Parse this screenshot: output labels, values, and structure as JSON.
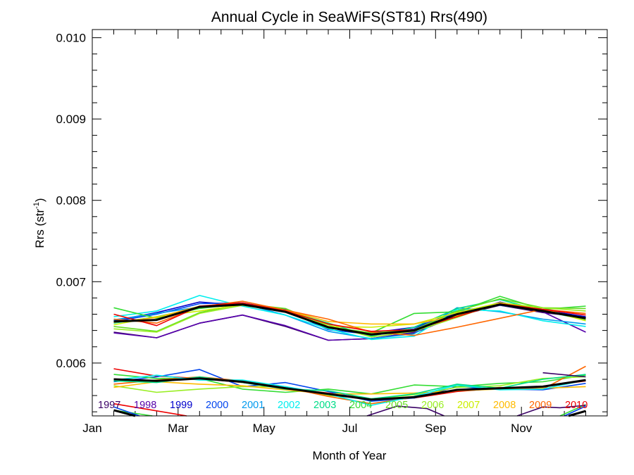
{
  "chart_data": {
    "type": "line",
    "title": "Annual Cycle in SeaWiFS(ST81) Rrs(490)",
    "xlabel": "Month of Year",
    "ylabel_main": "Rrs (str",
    "ylabel_sup": "-1",
    "ylabel_close": ")",
    "xlim": [
      0.5,
      12.5
    ],
    "ylim": [
      0.00535,
      0.0101
    ],
    "x_ticks": [
      {
        "value": 0.5,
        "label": "Jan"
      },
      {
        "value": 2.5,
        "label": "Mar"
      },
      {
        "value": 4.5,
        "label": "May"
      },
      {
        "value": 6.5,
        "label": "Jul"
      },
      {
        "value": 8.5,
        "label": "Sep"
      },
      {
        "value": 10.5,
        "label": "Nov"
      }
    ],
    "y_ticks": [
      {
        "value": 0.006,
        "label": "0.006"
      },
      {
        "value": 0.007,
        "label": "0.007"
      },
      {
        "value": 0.008,
        "label": "0.008"
      },
      {
        "value": 0.009,
        "label": "0.009"
      },
      {
        "value": 0.01,
        "label": "0.010"
      }
    ],
    "x": [
      1,
      2,
      3,
      4,
      5,
      6,
      7,
      8,
      9,
      10,
      11,
      12
    ],
    "series": [
      {
        "name": "1997",
        "color": "#3a0066",
        "values": [
          0.00638,
          0.00631,
          0.00649,
          0.00659,
          0.00645,
          0.00628,
          0.0063,
          0.00637,
          0.00658,
          0.00671,
          0.00662,
          0.00656
        ]
      },
      {
        "name": "1998",
        "color": "#5500aa",
        "values": [
          0.00637,
          0.00631,
          0.00649,
          0.00659,
          0.00646,
          0.00628,
          0.0063,
          0.00638,
          0.00657,
          0.00675,
          0.00663,
          0.00638
        ]
      },
      {
        "name": "1999",
        "color": "#0000cc",
        "values": [
          0.00652,
          0.00662,
          0.00675,
          0.00671,
          0.00666,
          0.00643,
          0.00637,
          0.00644,
          0.00661,
          0.00674,
          0.00665,
          0.00657
        ]
      },
      {
        "name": "2000",
        "color": "#0044ee",
        "values": [
          0.00651,
          0.0066,
          0.00673,
          0.00674,
          0.00665,
          0.00641,
          0.00635,
          0.00642,
          0.00664,
          0.00671,
          0.00664,
          0.00655
        ]
      },
      {
        "name": "2001",
        "color": "#0099ee",
        "values": [
          0.00653,
          0.00661,
          0.00669,
          0.00673,
          0.00659,
          0.00639,
          0.0063,
          0.00636,
          0.00668,
          0.00663,
          0.00654,
          0.00648
        ]
      },
      {
        "name": "2002",
        "color": "#00eeee",
        "values": [
          0.00657,
          0.00664,
          0.00683,
          0.0067,
          0.00659,
          0.00642,
          0.00629,
          0.00633,
          0.00666,
          0.00664,
          0.00652,
          0.00645
        ]
      },
      {
        "name": "2003",
        "color": "#00dd88",
        "values": [
          0.00649,
          0.00657,
          0.00668,
          0.00672,
          0.00664,
          0.00649,
          0.00633,
          0.00644,
          0.00667,
          0.00678,
          0.00664,
          0.00653
        ]
      },
      {
        "name": "2004",
        "color": "#33dd33",
        "values": [
          0.00668,
          0.00655,
          0.00667,
          0.00673,
          0.00664,
          0.00643,
          0.00637,
          0.00661,
          0.00663,
          0.00682,
          0.00666,
          0.0067
        ]
      },
      {
        "name": "2005",
        "color": "#66dd22",
        "values": [
          0.00645,
          0.00639,
          0.00662,
          0.00673,
          0.00667,
          0.00645,
          0.00637,
          0.00641,
          0.00664,
          0.00679,
          0.00668,
          0.00667
        ]
      },
      {
        "name": "2006",
        "color": "#99ee22",
        "values": [
          0.00642,
          0.00638,
          0.00661,
          0.00671,
          0.00663,
          0.00647,
          0.00632,
          0.00639,
          0.00656,
          0.00674,
          0.00668,
          0.00664
        ]
      },
      {
        "name": "2007",
        "color": "#ccee00",
        "values": [
          0.00647,
          0.00657,
          0.00664,
          0.00672,
          0.00663,
          0.00645,
          0.00644,
          0.00648,
          0.00662,
          0.00674,
          0.00666,
          0.00652
        ]
      },
      {
        "name": "2008",
        "color": "#ffbb00",
        "values": [
          0.0065,
          0.00656,
          0.0067,
          0.00672,
          0.00665,
          0.00651,
          0.00648,
          0.00648,
          0.00658,
          0.00672,
          0.00666,
          0.00654
        ]
      },
      {
        "name": "2009",
        "color": "#ff6600",
        "values": [
          0.00654,
          0.00649,
          0.00669,
          0.00676,
          0.00665,
          0.00654,
          0.00638,
          0.00634,
          0.00644,
          0.00655,
          0.00666,
          0.00661
        ]
      },
      {
        "name": "2010",
        "color": "#ee0000",
        "values": [
          0.0066,
          0.00646,
          0.0067,
          0.00674,
          0.00664,
          0.00648,
          0.00639,
          0.00641,
          0.00657,
          0.00673,
          0.00666,
          0.00659
        ]
      }
    ],
    "mean": {
      "color": "#000000",
      "values": [
        0.00651,
        0.00653,
        0.00669,
        0.00672,
        0.00663,
        0.00644,
        0.00635,
        0.0064,
        0.0066,
        0.00672,
        0.00664,
        0.00655
      ]
    },
    "lower_series": [
      {
        "color": "#ee0000",
        "values": [
          0.00593,
          0.00584,
          0.00581,
          0.00576,
          0.00569,
          0.00563,
          0.00556,
          0.00557,
          0.00565,
          0.00569,
          0.00571,
          0.00578
        ]
      },
      {
        "color": "#0044ee",
        "values": [
          0.00577,
          0.00583,
          0.00592,
          0.00571,
          0.00576,
          0.00565,
          0.00553,
          0.00557,
          0.00571,
          0.00568,
          0.00567,
          0.00575
        ]
      },
      {
        "color": "#33dd33",
        "values": [
          0.00586,
          0.00581,
          0.00581,
          0.00568,
          0.00564,
          0.00568,
          0.00562,
          0.00573,
          0.00571,
          0.00575,
          0.00577,
          0.00585
        ]
      },
      {
        "color": "#99ee22",
        "values": [
          0.00572,
          0.00564,
          0.00568,
          0.00571,
          0.00571,
          0.0056,
          0.00556,
          0.00561,
          0.0057,
          0.00572,
          0.00581,
          0.00583
        ]
      },
      {
        "color": "#ffbb00",
        "values": [
          0.0057,
          0.00577,
          0.00574,
          0.00572,
          0.00567,
          0.00562,
          0.00562,
          0.00563,
          0.00566,
          0.00568,
          0.00569,
          0.00571
        ]
      },
      {
        "color": "#ff6600",
        "values": [
          0.00574,
          0.00579,
          0.00583,
          0.00578,
          0.0057,
          0.00559,
          0.0055,
          0.00558,
          0.00566,
          0.0057,
          0.00568,
          0.00596
        ]
      },
      {
        "color": "#00eeee",
        "values": [
          0.00579,
          0.00585,
          0.00579,
          0.00579,
          0.00571,
          0.00562,
          0.00548,
          0.00559,
          0.00573,
          0.00567,
          0.00568,
          0.00579
        ]
      },
      {
        "color": "#00dd88",
        "values": [
          0.00578,
          0.00576,
          0.00583,
          0.00576,
          0.00568,
          0.00566,
          0.00556,
          0.00562,
          0.00574,
          0.00569,
          0.0058,
          0.00586
        ]
      },
      {
        "color": "#3a0066",
        "values": [
          null,
          null,
          null,
          null,
          null,
          null,
          null,
          null,
          null,
          null,
          0.00588,
          0.00583
        ]
      },
      {
        "color": "#000000",
        "values": [
          0.0058,
          0.00578,
          0.00581,
          0.00577,
          0.00569,
          0.00562,
          0.00555,
          0.00558,
          0.00567,
          0.00569,
          0.00571,
          0.00579
        ]
      }
    ],
    "bottom_fragments": [
      {
        "color": "#ee0000",
        "x": [
          1,
          2.7
        ],
        "values": [
          0.0055,
          0.00535
        ]
      },
      {
        "color": "#33dd33",
        "x": [
          1,
          1.9
        ],
        "values": [
          0.00542,
          0.00535
        ]
      },
      {
        "color": "#0044ee",
        "x": [
          1,
          1.6
        ],
        "values": [
          0.00546,
          0.00535
        ]
      },
      {
        "color": "#000000",
        "x": [
          1,
          1.5
        ],
        "values": [
          0.00542,
          0.00535
        ]
      },
      {
        "color": "#3a0066",
        "x": [
          6.9,
          7.6,
          8.3,
          8.7
        ],
        "values": [
          0.00535,
          0.00547,
          0.00544,
          0.00535
        ]
      },
      {
        "color": "#0044ee",
        "x": [
          11.5,
          12
        ],
        "values": [
          0.00535,
          0.00547
        ]
      },
      {
        "color": "#33dd33",
        "x": [
          11.4,
          12
        ],
        "values": [
          0.00535,
          0.00549
        ]
      },
      {
        "color": "#3a0066",
        "x": [
          10.4,
          11.0,
          11.4,
          12
        ],
        "values": [
          0.00535,
          0.00546,
          0.00545,
          0.00548
        ]
      },
      {
        "color": "#000000",
        "x": [
          11.6,
          12
        ],
        "values": [
          0.00535,
          0.00541
        ]
      }
    ]
  }
}
